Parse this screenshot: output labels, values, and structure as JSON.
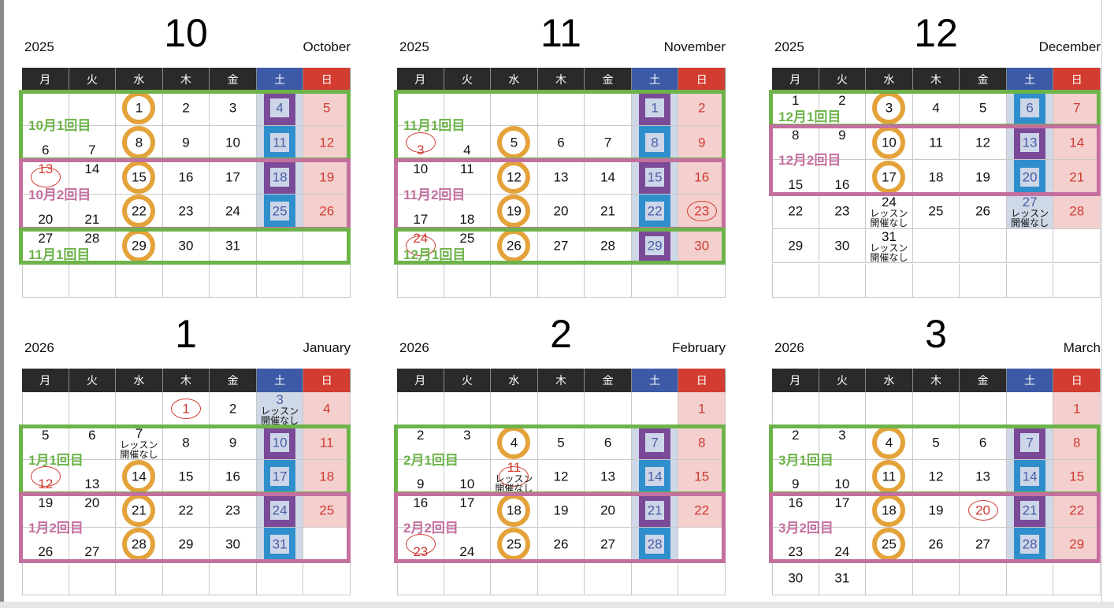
{
  "weekdays": [
    "月",
    "火",
    "水",
    "木",
    "金",
    "土",
    "日"
  ],
  "colors": {
    "green": "#6db34a",
    "pink": "#c4709f",
    "orange": "#e4a33a",
    "purple": "#7a4a98",
    "blue": "#2f8fcc",
    "sat_header": "#3c5aa6",
    "sun_header": "#d33c30"
  },
  "no_lesson_text": "レッスン開催なし",
  "months": [
    {
      "year": "2025",
      "number": "10",
      "name": "October",
      "start": 2,
      "days": 31,
      "rings": [
        1,
        8,
        15,
        22,
        29
      ],
      "red_circles": [
        13
      ],
      "purple": [
        4,
        18
      ],
      "blue": [
        11,
        25
      ],
      "no_lesson": [],
      "bands": [
        {
          "label": "10月1回目",
          "color": "green",
          "rows": [
            0,
            1
          ]
        },
        {
          "label": "10月2回目",
          "color": "pink",
          "rows": [
            2,
            3
          ]
        },
        {
          "label": "11月1回目",
          "color": "green",
          "rows": [
            4,
            4
          ]
        }
      ]
    },
    {
      "year": "2025",
      "number": "11",
      "name": "November",
      "start": 5,
      "days": 30,
      "rings": [
        5,
        12,
        19,
        26
      ],
      "red_circles": [
        3,
        23,
        24
      ],
      "purple": [
        1,
        15,
        29
      ],
      "blue": [
        8,
        22
      ],
      "no_lesson": [],
      "bands": [
        {
          "label": "11月1回目",
          "color": "green",
          "rows": [
            0,
            1
          ]
        },
        {
          "label": "11月2回目",
          "color": "pink",
          "rows": [
            2,
            3
          ]
        },
        {
          "label": "12月1回目",
          "color": "green",
          "rows": [
            4,
            4
          ]
        }
      ]
    },
    {
      "year": "2025",
      "number": "12",
      "name": "December",
      "start": 0,
      "days": 31,
      "rings": [
        3,
        10,
        17
      ],
      "red_circles": [],
      "purple": [
        13
      ],
      "blue": [
        6,
        20
      ],
      "no_lesson": [
        24,
        27,
        31
      ],
      "bands": [
        {
          "label": "12月1回目",
          "color": "green",
          "rows": [
            0,
            0
          ]
        },
        {
          "label": "12月2回目",
          "color": "pink",
          "rows": [
            1,
            2
          ]
        }
      ]
    },
    {
      "year": "2026",
      "number": "1",
      "name": "January",
      "start": 3,
      "days": 31,
      "rings": [
        14,
        21,
        28
      ],
      "red_circles": [
        1,
        12
      ],
      "purple": [
        10,
        24
      ],
      "blue": [
        17,
        31
      ],
      "no_lesson": [
        3,
        7
      ],
      "bands": [
        {
          "label": "1月1回目",
          "color": "green",
          "rows": [
            1,
            2
          ]
        },
        {
          "label": "1月2回目",
          "color": "pink",
          "rows": [
            3,
            4
          ]
        }
      ]
    },
    {
      "year": "2026",
      "number": "2",
      "name": "February",
      "start": 6,
      "days": 28,
      "rings": [
        4,
        18,
        25
      ],
      "red_circles": [
        11,
        23
      ],
      "purple": [
        7,
        21
      ],
      "blue": [
        14,
        28
      ],
      "no_lesson": [
        11
      ],
      "bands": [
        {
          "label": "2月1回目",
          "color": "green",
          "rows": [
            1,
            2
          ]
        },
        {
          "label": "2月2回目",
          "color": "pink",
          "rows": [
            3,
            4
          ]
        }
      ]
    },
    {
      "year": "2026",
      "number": "3",
      "name": "March",
      "start": 6,
      "days": 31,
      "rings": [
        4,
        11,
        18,
        25
      ],
      "red_circles": [
        20
      ],
      "purple": [
        7,
        21
      ],
      "blue": [
        14,
        28
      ],
      "no_lesson": [],
      "bands": [
        {
          "label": "3月1回目",
          "color": "green",
          "rows": [
            1,
            2
          ]
        },
        {
          "label": "3月2回目",
          "color": "pink",
          "rows": [
            3,
            4
          ]
        }
      ]
    }
  ]
}
